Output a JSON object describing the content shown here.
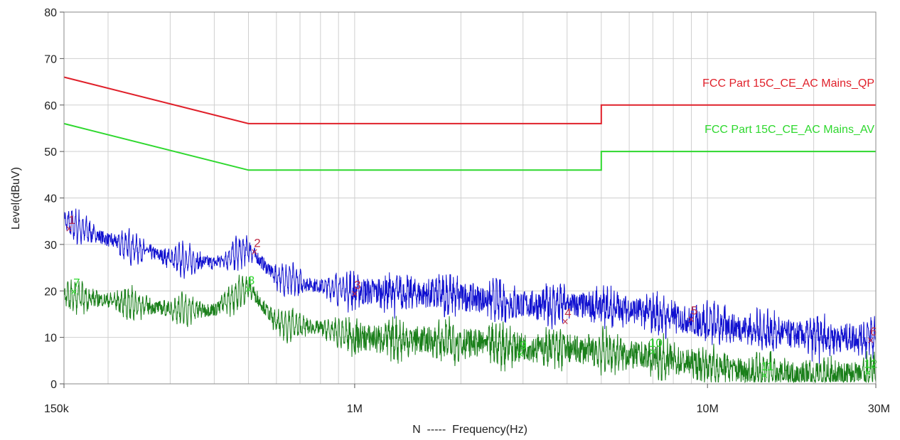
{
  "chart_data": {
    "type": "line",
    "xscale": "log",
    "xlim": [
      150000,
      30000000
    ],
    "ylim": [
      0,
      80
    ],
    "grid": true,
    "ylabel": "Level(dBuV)",
    "xlabel": "N  -----  Frequency(Hz)",
    "y_ticks": [
      "0",
      "10",
      "20",
      "30",
      "40",
      "50",
      "60",
      "70",
      "80"
    ],
    "y_tick_values": [
      0,
      10,
      20,
      30,
      40,
      50,
      60,
      70,
      80
    ],
    "x_ticks": [
      {
        "label": "150k",
        "value": 150000
      },
      {
        "label": "1M",
        "value": 1000000
      },
      {
        "label": "10M",
        "value": 10000000
      },
      {
        "label": "30M",
        "value": 30000000
      }
    ],
    "series": [
      {
        "name": "FCC Part 15C_CE_AC Mains_QP",
        "color": "#e0202a",
        "kind": "limit",
        "x": [
          150000,
          500000,
          500000,
          5000000,
          5000000,
          30000000
        ],
        "y": [
          66,
          56,
          56,
          56,
          60,
          60
        ]
      },
      {
        "name": "FCC Part 15C_CE_AC Mains_AV",
        "color": "#2ed82e",
        "kind": "limit",
        "x": [
          150000,
          500000,
          500000,
          5000000,
          5000000,
          30000000
        ],
        "y": [
          56,
          46,
          46,
          46,
          50,
          50
        ]
      },
      {
        "kind": "trace",
        "color": "#1010d0",
        "envelope_x": [
          150000,
          200000,
          300000,
          400000,
          500000,
          600000,
          800000,
          1000000,
          2000000,
          3000000,
          4000000,
          6000000,
          10000000,
          20000000,
          30000000
        ],
        "envelope_y": [
          35,
          31,
          27,
          26,
          29,
          23,
          21,
          20,
          19,
          17,
          17,
          16,
          13,
          10,
          10
        ]
      },
      {
        "kind": "trace",
        "color": "#1a7f1a",
        "envelope_x": [
          150000,
          200000,
          300000,
          400000,
          500000,
          600000,
          800000,
          1000000,
          2000000,
          3000000,
          5000000,
          8000000,
          12000000,
          20000000,
          30000000
        ],
        "envelope_y": [
          19,
          18,
          16,
          16,
          21,
          13,
          12,
          10,
          9,
          8,
          7,
          5,
          3,
          1.5,
          2
        ]
      }
    ],
    "markers": [
      {
        "label": "1",
        "x": 155000,
        "y": 33.5,
        "color": "#c0304a"
      },
      {
        "label": "2",
        "x": 520000,
        "y": 28.5,
        "color": "#c0304a"
      },
      {
        "label": "3",
        "x": 1000000,
        "y": 19.5,
        "color": "#c0304a"
      },
      {
        "label": "4",
        "x": 3950000,
        "y": 13.5,
        "color": "#c0304a"
      },
      {
        "label": "5",
        "x": 9000000,
        "y": 14,
        "color": "#c0304a"
      },
      {
        "label": "6",
        "x": 29000000,
        "y": 9.5,
        "color": "#c0304a"
      },
      {
        "label": "7",
        "x": 160000,
        "y": 20,
        "color": "#2ed82e"
      },
      {
        "label": "8",
        "x": 500000,
        "y": 20.5,
        "color": "#2ed82e"
      },
      {
        "label": "9",
        "x": 2950000,
        "y": 6.5,
        "color": "#2ed82e"
      },
      {
        "label": "10",
        "x": 7000000,
        "y": 7,
        "color": "#2ed82e"
      },
      {
        "label": "11",
        "x": 14500000,
        "y": 2,
        "color": "#2ed82e"
      },
      {
        "label": "12",
        "x": 28500000,
        "y": 2.5,
        "color": "#2ed82e"
      }
    ]
  }
}
